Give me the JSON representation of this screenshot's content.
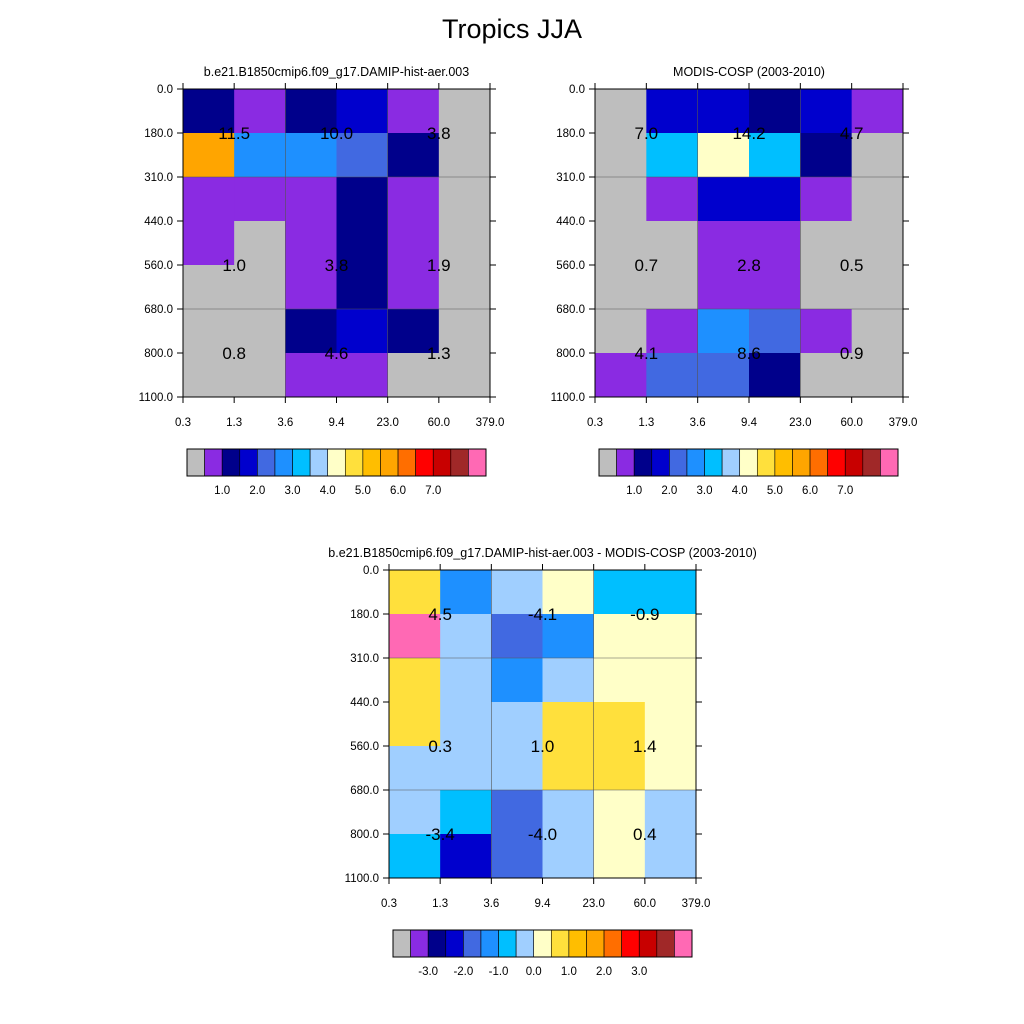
{
  "page_title": "Tropics JJA",
  "chart_data": [
    {
      "type": "heatmap",
      "title": "b.e21.B1850cmip6.f09_g17.DAMIP-hist-aer.003",
      "x_ticks": [
        "0.3",
        "1.3",
        "3.6",
        "9.4",
        "23.0",
        "60.0",
        "379.0"
      ],
      "y_ticks": [
        "0.0",
        "180.0",
        "310.0",
        "440.0",
        "560.0",
        "680.0",
        "800.0",
        "1100.0"
      ],
      "cell_colors": [
        [
          "#00008b",
          "#8a2be2",
          "#00008b",
          "#0000cd",
          "#8a2be2",
          "#bebebe"
        ],
        [
          "#ffa500",
          "#1e90ff",
          "#1e90ff",
          "#4169e1",
          "#00008b",
          "#bebebe"
        ],
        [
          "#8a2be2",
          "#8a2be2",
          "#8a2be2",
          "#00008b",
          "#8a2be2",
          "#bebebe"
        ],
        [
          "#8a2be2",
          "#bebebe",
          "#8a2be2",
          "#00008b",
          "#8a2be2",
          "#bebebe"
        ],
        [
          "#bebebe",
          "#bebebe",
          "#8a2be2",
          "#00008b",
          "#8a2be2",
          "#bebebe"
        ],
        [
          "#bebebe",
          "#bebebe",
          "#00008b",
          "#0000cd",
          "#00008b",
          "#bebebe"
        ],
        [
          "#bebebe",
          "#bebebe",
          "#8a2be2",
          "#8a2be2",
          "#bebebe",
          "#bebebe"
        ]
      ],
      "annotations": [
        {
          "text": "11.5",
          "col": 1,
          "pressure": 180.0
        },
        {
          "text": "10.0",
          "col": 3,
          "pressure": 180.0
        },
        {
          "text": "3.8",
          "col": 5,
          "pressure": 180.0
        },
        {
          "text": "1.0",
          "col": 1,
          "pressure": 560.0
        },
        {
          "text": "3.8",
          "col": 3,
          "pressure": 560.0
        },
        {
          "text": "1.9",
          "col": 5,
          "pressure": 560.0
        },
        {
          "text": "0.8",
          "col": 1,
          "pressure": 800.0
        },
        {
          "text": "4.6",
          "col": 3,
          "pressure": 800.0
        },
        {
          "text": "1.3",
          "col": 5,
          "pressure": 800.0
        }
      ],
      "colorbar": {
        "colors": [
          "#bebebe",
          "#8a2be2",
          "#00008b",
          "#0000cd",
          "#4169e1",
          "#1e90ff",
          "#00bfff",
          "#a0cfff",
          "#ffffc8",
          "#ffe03c",
          "#ffbe00",
          "#ffa500",
          "#ff6e00",
          "#ff0000",
          "#c80000",
          "#a02828",
          "#ff69b4"
        ],
        "labels": [
          "1.0",
          "2.0",
          "3.0",
          "4.0",
          "5.0",
          "6.0",
          "7.0"
        ]
      }
    },
    {
      "type": "heatmap",
      "title": "MODIS-COSP (2003-2010)",
      "x_ticks": [
        "0.3",
        "1.3",
        "3.6",
        "9.4",
        "23.0",
        "60.0",
        "379.0"
      ],
      "y_ticks": [
        "0.0",
        "180.0",
        "310.0",
        "440.0",
        "560.0",
        "680.0",
        "800.0",
        "1100.0"
      ],
      "cell_colors": [
        [
          "#bebebe",
          "#0000cd",
          "#0000cd",
          "#00008b",
          "#0000cd",
          "#8a2be2"
        ],
        [
          "#bebebe",
          "#00bfff",
          "#ffffc8",
          "#00bfff",
          "#00008b",
          "#bebebe"
        ],
        [
          "#bebebe",
          "#8a2be2",
          "#0000cd",
          "#0000cd",
          "#8a2be2",
          "#bebebe"
        ],
        [
          "#bebebe",
          "#bebebe",
          "#8a2be2",
          "#8a2be2",
          "#bebebe",
          "#bebebe"
        ],
        [
          "#bebebe",
          "#bebebe",
          "#8a2be2",
          "#8a2be2",
          "#bebebe",
          "#bebebe"
        ],
        [
          "#bebebe",
          "#8a2be2",
          "#1e90ff",
          "#4169e1",
          "#8a2be2",
          "#bebebe"
        ],
        [
          "#8a2be2",
          "#4169e1",
          "#4169e1",
          "#00008b",
          "#bebebe",
          "#bebebe"
        ]
      ],
      "annotations": [
        {
          "text": "7.0",
          "col": 1,
          "pressure": 180.0
        },
        {
          "text": "14.2",
          "col": 3,
          "pressure": 180.0
        },
        {
          "text": "4.7",
          "col": 5,
          "pressure": 180.0
        },
        {
          "text": "0.7",
          "col": 1,
          "pressure": 560.0
        },
        {
          "text": "2.8",
          "col": 3,
          "pressure": 560.0
        },
        {
          "text": "0.5",
          "col": 5,
          "pressure": 560.0
        },
        {
          "text": "4.1",
          "col": 1,
          "pressure": 800.0
        },
        {
          "text": "8.6",
          "col": 3,
          "pressure": 800.0
        },
        {
          "text": "0.9",
          "col": 5,
          "pressure": 800.0
        }
      ],
      "colorbar": {
        "colors": [
          "#bebebe",
          "#8a2be2",
          "#00008b",
          "#0000cd",
          "#4169e1",
          "#1e90ff",
          "#00bfff",
          "#a0cfff",
          "#ffffc8",
          "#ffe03c",
          "#ffbe00",
          "#ffa500",
          "#ff6e00",
          "#ff0000",
          "#c80000",
          "#a02828",
          "#ff69b4"
        ],
        "labels": [
          "1.0",
          "2.0",
          "3.0",
          "4.0",
          "5.0",
          "6.0",
          "7.0"
        ]
      }
    },
    {
      "type": "heatmap",
      "title": "b.e21.B1850cmip6.f09_g17.DAMIP-hist-aer.003 - MODIS-COSP (2003-2010)",
      "x_ticks": [
        "0.3",
        "1.3",
        "3.6",
        "9.4",
        "23.0",
        "60.0",
        "379.0"
      ],
      "y_ticks": [
        "0.0",
        "180.0",
        "310.0",
        "440.0",
        "560.0",
        "680.0",
        "800.0",
        "1100.0"
      ],
      "cell_colors": [
        [
          "#ffe03c",
          "#1e90ff",
          "#a0cfff",
          "#ffffc8",
          "#00bfff",
          "#00bfff"
        ],
        [
          "#ff69b4",
          "#a0cfff",
          "#4169e1",
          "#1e90ff",
          "#ffffc8",
          "#ffffc8"
        ],
        [
          "#ffe03c",
          "#a0cfff",
          "#1e90ff",
          "#a0cfff",
          "#ffffc8",
          "#ffffc8"
        ],
        [
          "#ffe03c",
          "#a0cfff",
          "#a0cfff",
          "#ffe03c",
          "#ffe03c",
          "#ffffc8"
        ],
        [
          "#a0cfff",
          "#a0cfff",
          "#a0cfff",
          "#ffe03c",
          "#ffe03c",
          "#ffffc8"
        ],
        [
          "#a0cfff",
          "#00bfff",
          "#4169e1",
          "#a0cfff",
          "#ffffc8",
          "#a0cfff"
        ],
        [
          "#00bfff",
          "#0000cd",
          "#4169e1",
          "#a0cfff",
          "#ffffc8",
          "#a0cfff"
        ]
      ],
      "annotations": [
        {
          "text": "4.5",
          "col": 1,
          "pressure": 180.0
        },
        {
          "text": "-4.1",
          "col": 3,
          "pressure": 180.0
        },
        {
          "text": "-0.9",
          "col": 5,
          "pressure": 180.0
        },
        {
          "text": "0.3",
          "col": 1,
          "pressure": 560.0
        },
        {
          "text": "1.0",
          "col": 3,
          "pressure": 560.0
        },
        {
          "text": "1.4",
          "col": 5,
          "pressure": 560.0
        },
        {
          "text": "-3.4",
          "col": 1,
          "pressure": 800.0
        },
        {
          "text": "-4.0",
          "col": 3,
          "pressure": 800.0
        },
        {
          "text": "0.4",
          "col": 5,
          "pressure": 800.0
        }
      ],
      "colorbar": {
        "colors": [
          "#bebebe",
          "#8a2be2",
          "#00008b",
          "#0000cd",
          "#4169e1",
          "#1e90ff",
          "#00bfff",
          "#a0cfff",
          "#ffffc8",
          "#ffe03c",
          "#ffbe00",
          "#ffa500",
          "#ff6e00",
          "#ff0000",
          "#c80000",
          "#a02828",
          "#ff69b4"
        ],
        "labels": [
          "-3.0",
          "-2.0",
          "-1.0",
          "0.0",
          "1.0",
          "2.0",
          "3.0"
        ]
      }
    }
  ]
}
